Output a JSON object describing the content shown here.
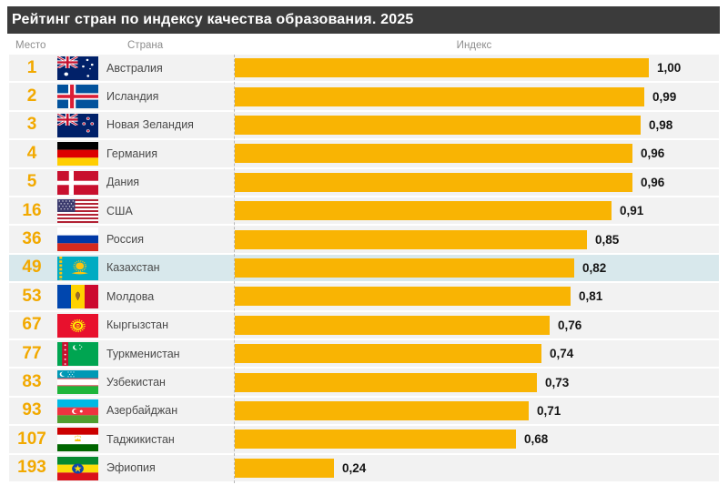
{
  "title": "Рейтинг стран по индексу качества образования. 2025",
  "columns": {
    "rank": "Место",
    "country": "Страна",
    "index": "Индекс"
  },
  "colors": {
    "bar": "#F9B403",
    "rank_text": "#F2A900",
    "title_bg": "#3B3B3B",
    "row_bg": "#F2F2F2",
    "highlight_row_bg": "#D8E8EC",
    "dashed_line": "#B9B9B9"
  },
  "chart_data": {
    "type": "bar",
    "orientation": "horizontal",
    "title": "Рейтинг стран по индексу качества образования. 2025",
    "value_axis_label": "Индекс",
    "xlim": [
      0,
      1.0
    ],
    "grid": false,
    "legend": false,
    "rows": [
      {
        "rank": "1",
        "country": "Австралия",
        "flag": "australia",
        "value": 1.0,
        "value_label": "1,00",
        "highlighted": false
      },
      {
        "rank": "2",
        "country": "Исландия",
        "flag": "iceland",
        "value": 0.99,
        "value_label": "0,99",
        "highlighted": false
      },
      {
        "rank": "3",
        "country": "Новая Зеландия",
        "flag": "new-zealand",
        "value": 0.98,
        "value_label": "0,98",
        "highlighted": false
      },
      {
        "rank": "4",
        "country": "Германия",
        "flag": "germany",
        "value": 0.96,
        "value_label": "0,96",
        "highlighted": false
      },
      {
        "rank": "5",
        "country": "Дания",
        "flag": "denmark",
        "value": 0.96,
        "value_label": "0,96",
        "highlighted": false
      },
      {
        "rank": "16",
        "country": "США",
        "flag": "usa",
        "value": 0.91,
        "value_label": "0,91",
        "highlighted": false
      },
      {
        "rank": "36",
        "country": "Россия",
        "flag": "russia",
        "value": 0.85,
        "value_label": "0,85",
        "highlighted": false
      },
      {
        "rank": "49",
        "country": "Казахстан",
        "flag": "kazakhstan",
        "value": 0.82,
        "value_label": "0,82",
        "highlighted": true
      },
      {
        "rank": "53",
        "country": "Молдова",
        "flag": "moldova",
        "value": 0.81,
        "value_label": "0,81",
        "highlighted": false
      },
      {
        "rank": "67",
        "country": "Кыргызстан",
        "flag": "kyrgyzstan",
        "value": 0.76,
        "value_label": "0,76",
        "highlighted": false
      },
      {
        "rank": "77",
        "country": "Туркменистан",
        "flag": "turkmenistan",
        "value": 0.74,
        "value_label": "0,74",
        "highlighted": false
      },
      {
        "rank": "83",
        "country": "Узбекистан",
        "flag": "uzbekistan",
        "value": 0.73,
        "value_label": "0,73",
        "highlighted": false
      },
      {
        "rank": "93",
        "country": "Азербайджан",
        "flag": "azerbaijan",
        "value": 0.71,
        "value_label": "0,71",
        "highlighted": false
      },
      {
        "rank": "107",
        "country": "Таджикистан",
        "flag": "tajikistan",
        "value": 0.68,
        "value_label": "0,68",
        "highlighted": false
      },
      {
        "rank": "193",
        "country": "Эфиопия",
        "flag": "ethiopia",
        "value": 0.24,
        "value_label": "0,24",
        "highlighted": false
      }
    ]
  }
}
